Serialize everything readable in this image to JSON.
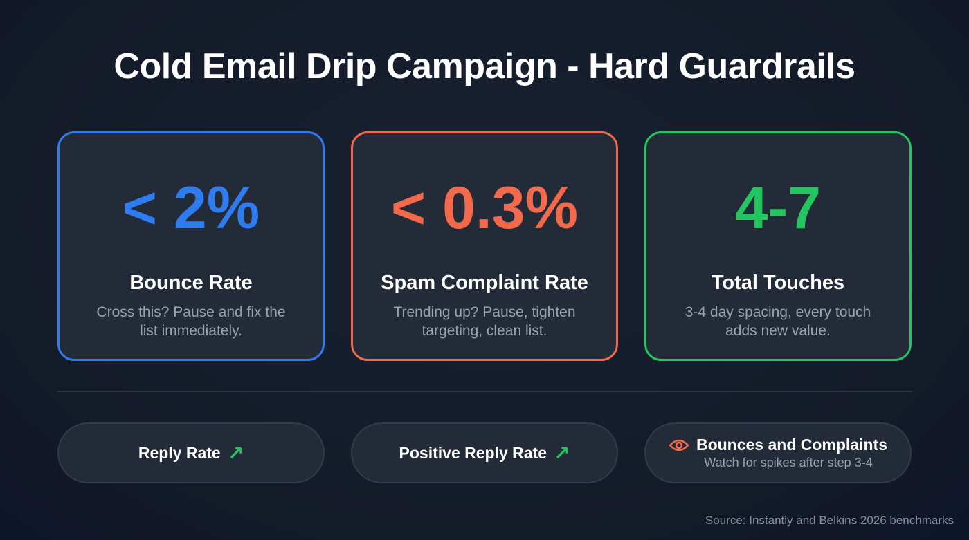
{
  "title": "Cold Email Drip Campaign - Hard Guardrails",
  "colors": {
    "blue": "#2f7bf0",
    "orange": "#f26a4b",
    "green": "#22c55e"
  },
  "cards": [
    {
      "value": "< 2%",
      "label": "Bounce Rate",
      "description": "Cross this? Pause and fix the list immediately."
    },
    {
      "value": "< 0.3%",
      "label": "Spam Complaint Rate",
      "description": "Trending up? Pause, tighten targeting, clean list."
    },
    {
      "value": "4-7",
      "label": "Total Touches",
      "description": "3-4 day spacing, every touch adds new value."
    }
  ],
  "pills": [
    {
      "label": "Reply Rate",
      "icon": "arrow-up-right-icon"
    },
    {
      "label": "Positive Reply Rate",
      "icon": "arrow-up-right-icon"
    },
    {
      "label": "Bounces and Complaints",
      "sub": "Watch for spikes after step 3-4",
      "icon": "eye-icon"
    }
  ],
  "source": "Source: Instantly and Belkins 2026 benchmarks"
}
